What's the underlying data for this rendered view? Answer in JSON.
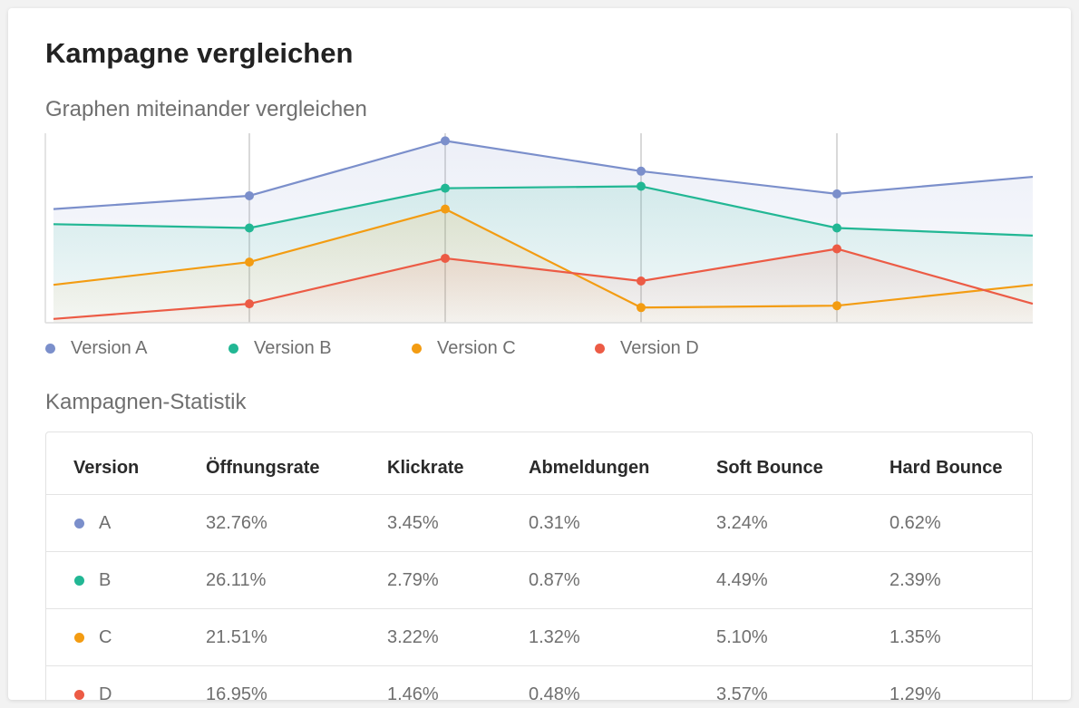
{
  "header": {
    "title": "Kampagne vergleichen",
    "subtitle": "Graphen miteinander vergleichen"
  },
  "chart_data": {
    "type": "area",
    "title": "Graphen miteinander vergleichen",
    "x": [
      0,
      1,
      2,
      3,
      4,
      5
    ],
    "ylim": [
      0,
      100
    ],
    "grid": "vertical",
    "legend": "bottom-left",
    "series": [
      {
        "name": "Version A",
        "color": "#7b8fcb",
        "values": [
          60,
          67,
          96,
          80,
          68,
          77
        ]
      },
      {
        "name": "Version B",
        "color": "#22b794",
        "values": [
          52,
          50,
          71,
          72,
          50,
          46
        ]
      },
      {
        "name": "Version C",
        "color": "#f39c12",
        "values": [
          20,
          32,
          60,
          8,
          9,
          20
        ]
      },
      {
        "name": "Version D",
        "color": "#ec5b45",
        "values": [
          2,
          10,
          34,
          22,
          39,
          10
        ]
      }
    ]
  },
  "legend": {
    "items": [
      {
        "label": "Version A",
        "color": "#7b8fcb"
      },
      {
        "label": "Version B",
        "color": "#22b794"
      },
      {
        "label": "Version C",
        "color": "#f39c12"
      },
      {
        "label": "Version D",
        "color": "#ec5b45"
      }
    ]
  },
  "stats": {
    "title": "Kampagnen-Statistik",
    "columns": [
      "Version",
      "Öffnungsrate",
      "Klickrate",
      "Abmeldungen",
      "Soft Bounce",
      "Hard Bounce"
    ],
    "rows": [
      {
        "color": "#7b8fcb",
        "cells": [
          "A",
          "32.76%",
          "3.45%",
          "0.31%",
          "3.24%",
          "0.62%"
        ]
      },
      {
        "color": "#22b794",
        "cells": [
          "B",
          "26.11%",
          "2.79%",
          "0.87%",
          "4.49%",
          "2.39%"
        ]
      },
      {
        "color": "#f39c12",
        "cells": [
          "C",
          "21.51%",
          "3.22%",
          "1.32%",
          "5.10%",
          "1.35%"
        ]
      },
      {
        "color": "#ec5b45",
        "cells": [
          "D",
          "16.95%",
          "1.46%",
          "0.48%",
          "3.57%",
          "1.29%"
        ]
      }
    ]
  }
}
